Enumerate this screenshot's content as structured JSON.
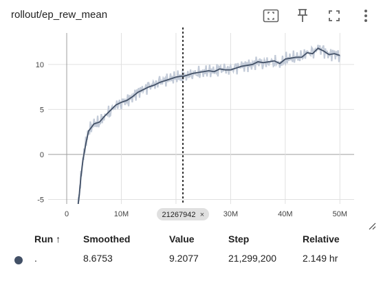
{
  "header": {
    "title": "rollout/ep_rew_mean",
    "icons": [
      "fit-domain-icon",
      "pin-icon",
      "fullscreen-icon",
      "more-vert-icon"
    ]
  },
  "chart_data": {
    "type": "line",
    "title": "rollout/ep_rew_mean",
    "xlabel": "",
    "ylabel": "",
    "xlim": [
      -3400000,
      52600000
    ],
    "ylim": [
      -5.5,
      13.5
    ],
    "x_ticks": [
      "0",
      "10M",
      "20M",
      "30M",
      "40M",
      "50M"
    ],
    "x_tick_values": [
      0,
      10000000,
      20000000,
      30000000,
      40000000,
      50000000
    ],
    "y_ticks": [
      "-5",
      "0",
      "5",
      "10"
    ],
    "y_tick_values": [
      -5,
      0,
      5,
      10
    ],
    "grid": true,
    "cursor_x": 21267942,
    "cursor_label": "21267942",
    "series": [
      {
        "color": "#425066",
        "raw_color": "#c3cbd8",
        "x": [
          2000000,
          2300000,
          2600000,
          3000000,
          3500000,
          4000000,
          5000000,
          6000000,
          7000000,
          8000000,
          9000000,
          10000000,
          11000000,
          12000000,
          13000000,
          14000000,
          15000000,
          16000000,
          17000000,
          18000000,
          19000000,
          20000000,
          21000000,
          21299200,
          22000000,
          23000000,
          24000000,
          25000000,
          26000000,
          27000000,
          28000000,
          29000000,
          30000000,
          31000000,
          32000000,
          33000000,
          34000000,
          35000000,
          36000000,
          37000000,
          38000000,
          39000000,
          40000000,
          41000000,
          42000000,
          43000000,
          44000000,
          45000000,
          46000000,
          47000000,
          48000000,
          49000000,
          50000000
        ],
        "smoothed": [
          -6.0,
          -4.5,
          -2.5,
          -0.5,
          1.2,
          2.6,
          3.4,
          3.6,
          4.3,
          4.9,
          5.5,
          5.8,
          6.0,
          6.4,
          6.9,
          7.2,
          7.5,
          7.7,
          8.0,
          8.2,
          8.4,
          8.6,
          8.7,
          8.68,
          8.8,
          9.0,
          9.1,
          9.2,
          9.3,
          9.2,
          9.5,
          9.4,
          9.4,
          9.6,
          9.8,
          9.9,
          10.0,
          10.3,
          10.2,
          10.3,
          10.4,
          10.1,
          10.6,
          10.7,
          10.8,
          10.8,
          11.3,
          11.2,
          11.8,
          11.5,
          11.1,
          11.2,
          11.0
        ]
      }
    ]
  },
  "table": {
    "headers": {
      "run": "Run",
      "sort_arrow": "↑",
      "smoothed": "Smoothed",
      "value": "Value",
      "step": "Step",
      "relative": "Relative"
    },
    "row": {
      "run": ".",
      "smoothed": "8.6753",
      "value": "9.2077",
      "step": "21,299,200",
      "relative": "2.149 hr",
      "color": "#425066"
    }
  }
}
